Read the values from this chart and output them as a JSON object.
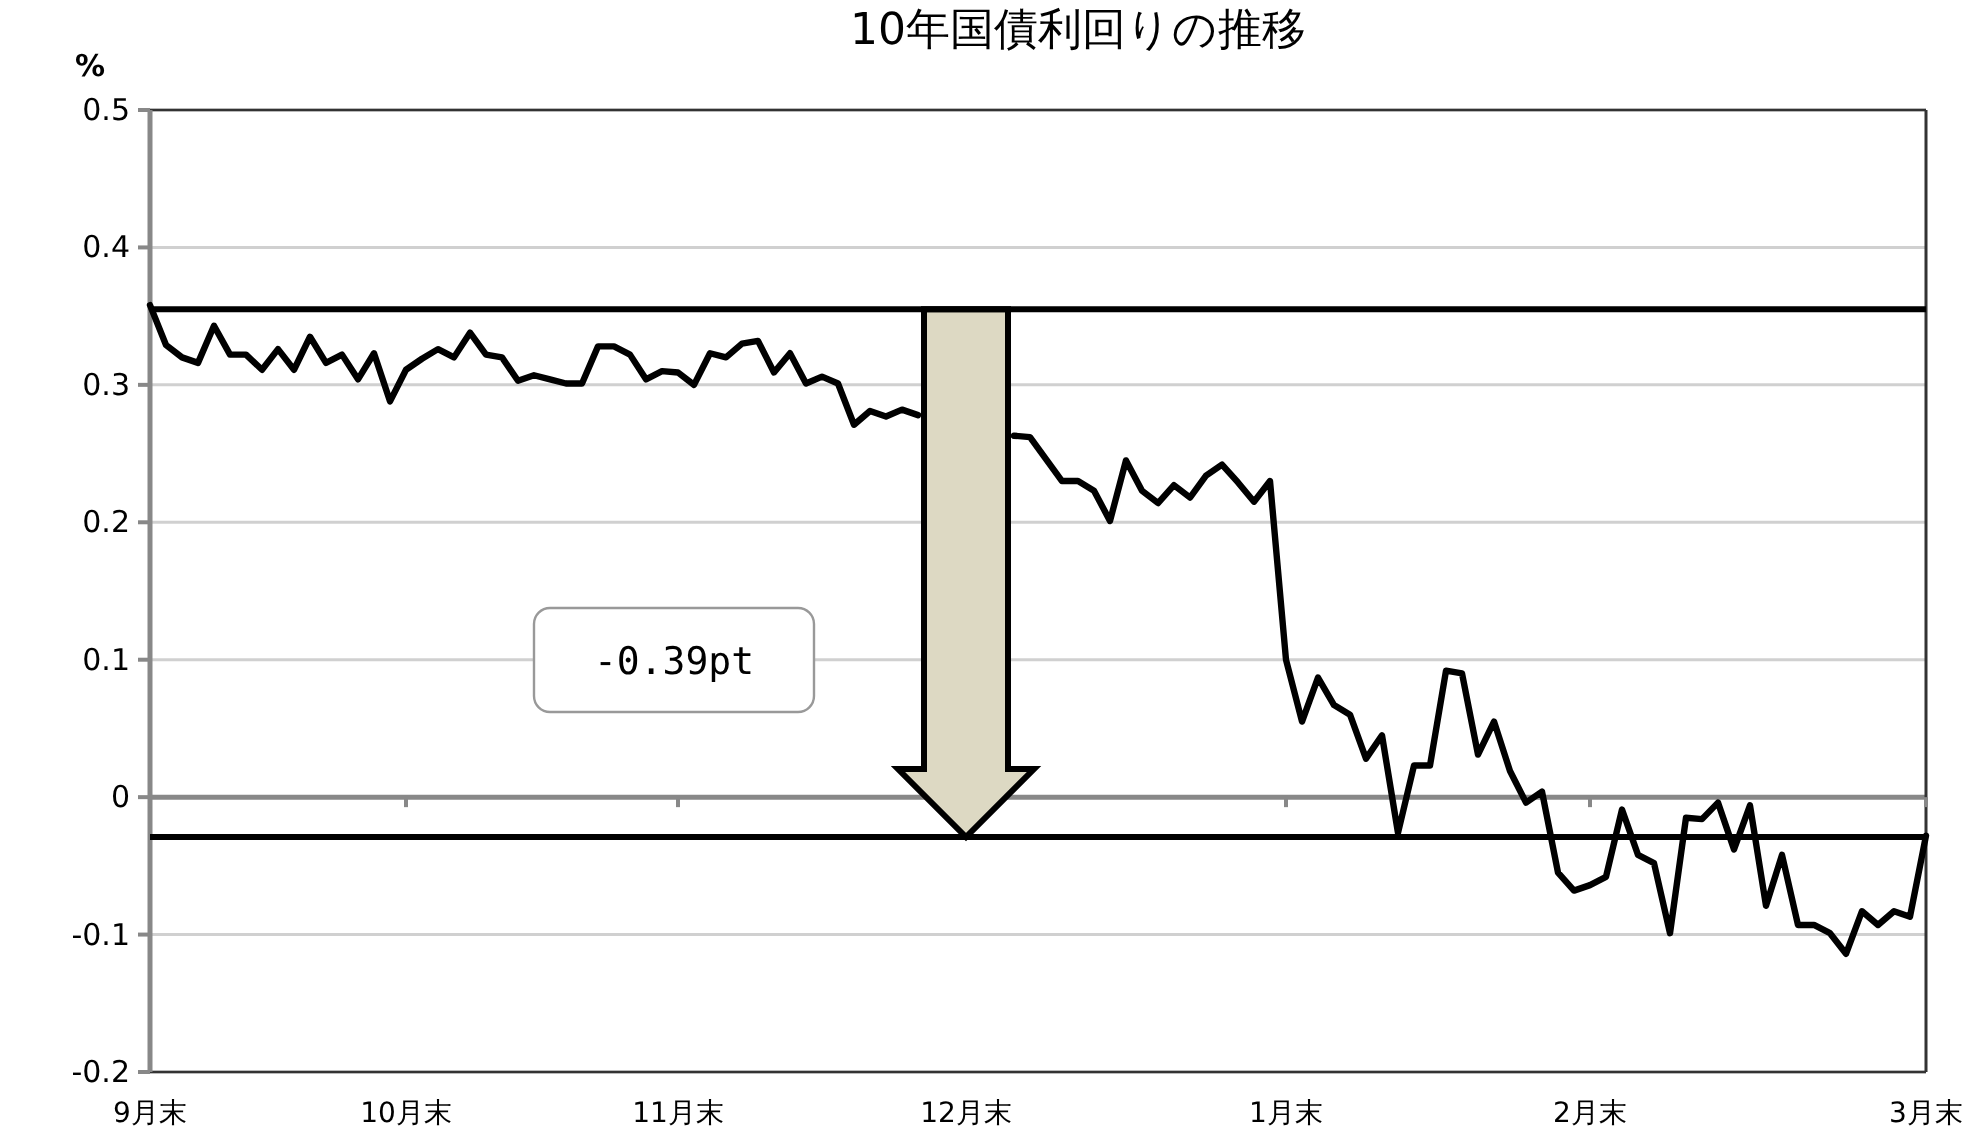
{
  "chart_data": {
    "type": "line",
    "title": "10年国債利回りの推移",
    "ylabel": "%",
    "categories": [
      "9月末",
      null,
      null,
      null,
      null,
      null,
      null,
      null,
      null,
      null,
      null,
      null,
      null,
      null,
      null,
      null,
      "10月末",
      null,
      null,
      null,
      null,
      null,
      null,
      null,
      null,
      null,
      null,
      null,
      null,
      null,
      null,
      null,
      null,
      "11月末",
      null,
      null,
      null,
      null,
      null,
      null,
      null,
      null,
      null,
      null,
      null,
      null,
      null,
      null,
      null,
      null,
      null,
      "12月末",
      null,
      null,
      null,
      null,
      null,
      null,
      null,
      null,
      null,
      null,
      null,
      null,
      null,
      null,
      null,
      null,
      null,
      null,
      null,
      "1月末",
      null,
      null,
      null,
      null,
      null,
      null,
      null,
      null,
      null,
      null,
      null,
      null,
      null,
      null,
      null,
      null,
      null,
      null,
      "2月末",
      null,
      null,
      null,
      null,
      null,
      null,
      null,
      null,
      null,
      null,
      null,
      null,
      null,
      null,
      null,
      null,
      null,
      null,
      null,
      null,
      "3月末"
    ],
    "ylim": [
      -0.2,
      0.5
    ],
    "yticks": [
      -0.2,
      -0.1,
      0,
      0.1,
      0.2,
      0.3,
      0.4,
      0.5
    ],
    "grid": "y",
    "marker": "none",
    "line_style": "solid",
    "ref_lines": [
      {
        "axis": "y",
        "value": 0.355,
        "color": "#000000"
      },
      {
        "axis": "y",
        "value": -0.029,
        "color": "#000000"
      }
    ],
    "annotations": [
      "-0.39pt"
    ],
    "series": [
      {
        "color": "#000000",
        "values": [
          0.358,
          0.329,
          0.32,
          0.316,
          0.343,
          0.322,
          0.322,
          0.311,
          0.326,
          0.311,
          0.335,
          0.316,
          0.322,
          0.304,
          0.323,
          0.288,
          0.311,
          0.319,
          0.326,
          0.32,
          0.338,
          0.322,
          0.32,
          0.303,
          0.307,
          0.304,
          0.301,
          0.301,
          0.328,
          0.328,
          0.322,
          0.304,
          0.31,
          0.309,
          0.3,
          0.323,
          0.32,
          0.33,
          0.332,
          0.309,
          0.323,
          0.301,
          0.306,
          0.301,
          0.271,
          0.281,
          0.277,
          0.282,
          0.278,
          null,
          null,
          null,
          null,
          null,
          0.263,
          0.262,
          0.246,
          0.23,
          0.23,
          0.223,
          0.201,
          0.245,
          0.223,
          0.214,
          0.227,
          0.218,
          0.234,
          0.242,
          0.229,
          0.215,
          0.23,
          0.1,
          0.055,
          0.087,
          0.067,
          0.06,
          0.028,
          0.045,
          -0.026,
          0.023,
          0.023,
          0.092,
          0.09,
          0.031,
          0.055,
          0.019,
          -0.004,
          0.004,
          -0.055,
          -0.068,
          -0.064,
          -0.058,
          -0.009,
          -0.042,
          -0.048,
          -0.099,
          -0.015,
          -0.016,
          -0.004,
          -0.038,
          -0.006,
          -0.079,
          -0.042,
          -0.093,
          -0.093,
          -0.099,
          -0.114,
          -0.083,
          -0.093,
          -0.083,
          -0.087,
          -0.028
        ]
      }
    ]
  }
}
